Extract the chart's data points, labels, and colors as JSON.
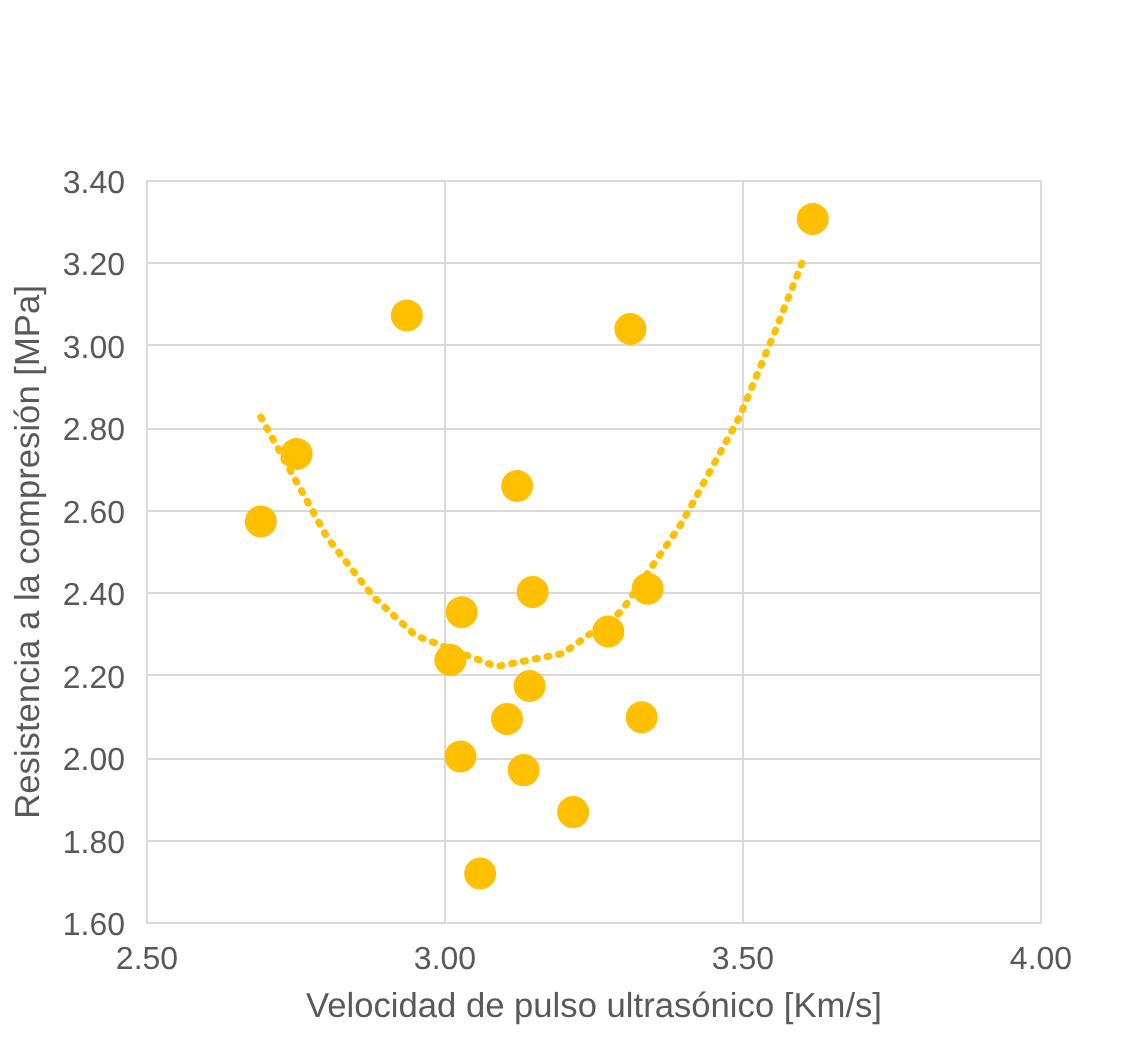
{
  "chart_data": {
    "type": "scatter",
    "xlabel": "Velocidad de pulso ultrasónico [Km/s]",
    "ylabel": "Resistencia a la compresión [MPa]",
    "xlim": [
      2.5,
      4.0
    ],
    "xticks": [
      {
        "value": 2.5,
        "label": "2.50"
      },
      {
        "value": 3.0,
        "label": "3.00"
      },
      {
        "value": 3.5,
        "label": "3.50"
      },
      {
        "value": 4.0,
        "label": "4.00"
      }
    ],
    "ylim": [
      1.6,
      3.4
    ],
    "yticks": [
      {
        "value": 1.6,
        "label": "1.60"
      },
      {
        "value": 1.8,
        "label": "1.80"
      },
      {
        "value": 2.0,
        "label": "2.00"
      },
      {
        "value": 2.2,
        "label": "2.20"
      },
      {
        "value": 2.4,
        "label": "2.40"
      },
      {
        "value": 2.6,
        "label": "2.60"
      },
      {
        "value": 2.8,
        "label": "2.80"
      },
      {
        "value": 3.0,
        "label": "3.00"
      },
      {
        "value": 3.2,
        "label": "3.20"
      },
      {
        "value": 3.4,
        "label": "3.40"
      }
    ],
    "grid": true,
    "marker": "circle",
    "series": [
      {
        "color": "#ffc000",
        "x": [
          2.691,
          2.751,
          2.936,
          3.311,
          3.617,
          3.121,
          3.147,
          3.34,
          3.028,
          3.274,
          3.009,
          3.142,
          3.104,
          3.33,
          3.026,
          3.132,
          3.215,
          3.059
        ],
        "values": [
          2.574,
          2.738,
          3.074,
          3.041,
          3.308,
          2.66,
          2.403,
          2.411,
          2.354,
          2.307,
          2.238,
          2.175,
          2.095,
          2.099,
          2.004,
          1.971,
          1.869,
          1.72
        ]
      },
      {
        "type": "line",
        "color": "#ffc000",
        "line_style": "dotted",
        "marker": "none",
        "x": [
          2.691,
          2.802,
          2.88,
          2.951,
          3.086,
          3.198,
          3.296,
          3.398,
          3.494,
          3.556,
          3.605
        ],
        "values": [
          2.827,
          2.536,
          2.391,
          2.297,
          2.222,
          2.254,
          2.356,
          2.572,
          2.827,
          3.043,
          3.223
        ]
      }
    ]
  }
}
